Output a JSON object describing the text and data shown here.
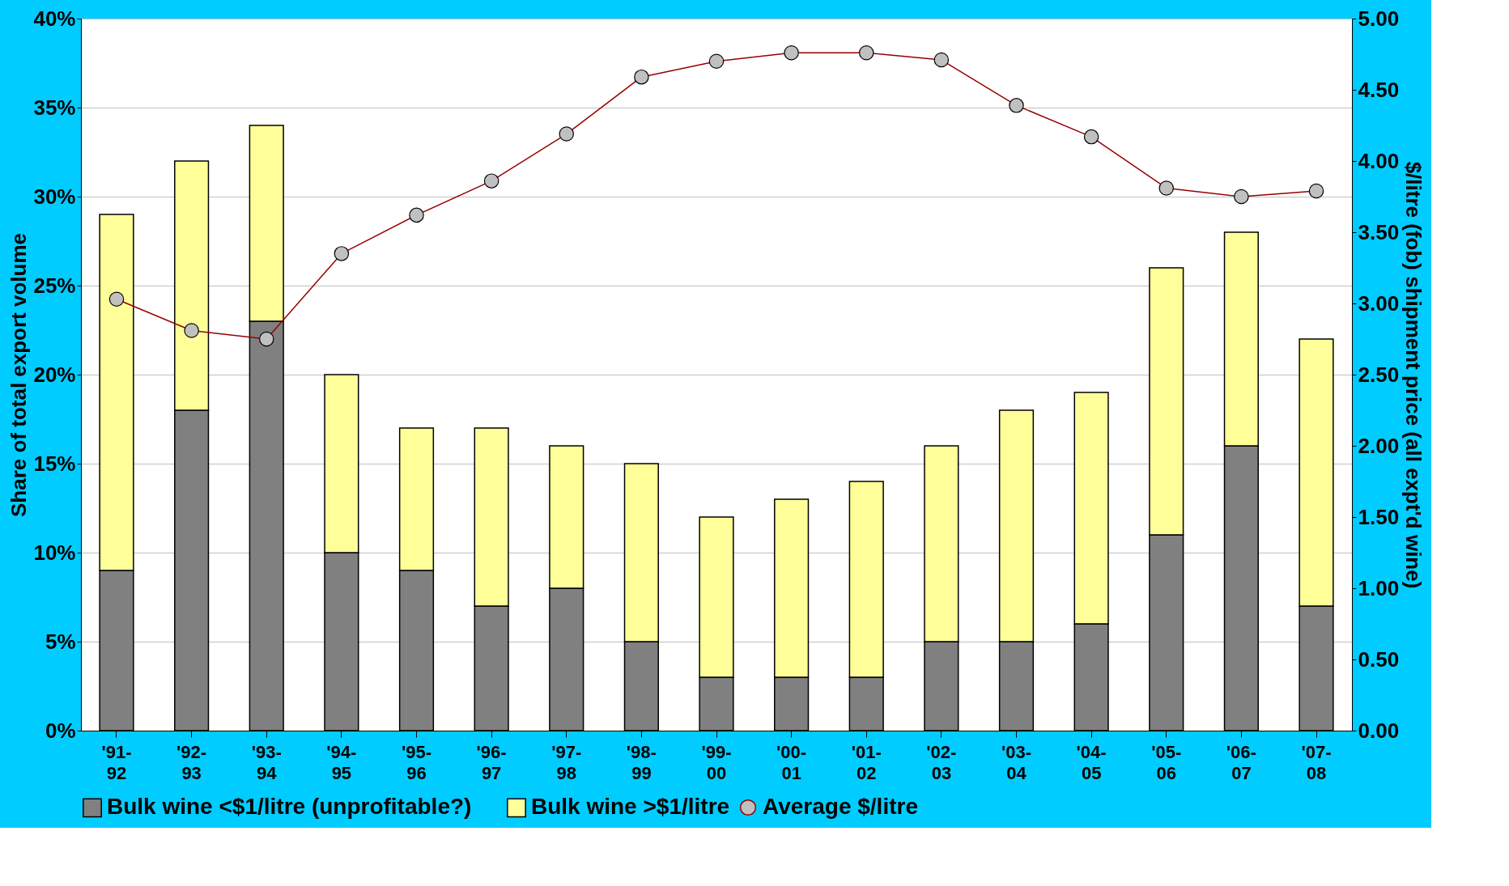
{
  "chart_data": {
    "type": "bar",
    "stacked": true,
    "ylabel": "Share of total export volume",
    "y2label": "$/litre (fob) shipment price (all expt'd wine)",
    "categories": [
      "'91-92",
      "'92-93",
      "'93-94",
      "'94-95",
      "'95-96",
      "'96-97",
      "'97-98",
      "'98-99",
      "'99-00",
      "'00-01",
      "'01-02",
      "'02-03",
      "'03-04",
      "'04-05",
      "'05-06",
      "'06-07",
      "'07-08"
    ],
    "series": [
      {
        "name": "Bulk wine <$1/litre (unprofitable?)",
        "color": "#808080",
        "values": [
          9,
          18,
          23,
          10,
          9,
          7,
          8,
          5,
          3,
          3,
          3,
          5,
          5,
          6,
          11,
          16,
          7
        ]
      },
      {
        "name": "Bulk wine >$1/litre",
        "color": "#ffff99",
        "values": [
          20,
          14,
          11,
          10,
          8,
          10,
          8,
          10,
          9,
          10,
          11,
          11,
          13,
          13,
          15,
          12,
          15
        ]
      },
      {
        "name": "Average $/litre",
        "type": "line",
        "axis": "y2",
        "color": "#990000",
        "marker": "circle",
        "values": [
          3.03,
          2.81,
          2.75,
          3.35,
          3.62,
          3.86,
          4.19,
          4.59,
          4.7,
          4.76,
          4.76,
          4.71,
          4.39,
          4.17,
          3.81,
          3.75,
          3.79
        ]
      }
    ],
    "ylim": [
      0,
      40
    ],
    "yticks": [
      {
        "value": 0,
        "label": "0%"
      },
      {
        "value": 5,
        "label": "5%"
      },
      {
        "value": 10,
        "label": "10%"
      },
      {
        "value": 15,
        "label": "15%"
      },
      {
        "value": 20,
        "label": "20%"
      },
      {
        "value": 25,
        "label": "25%"
      },
      {
        "value": 30,
        "label": "30%"
      },
      {
        "value": 35,
        "label": "35%"
      },
      {
        "value": 40,
        "label": "40%"
      }
    ],
    "y2lim": [
      0,
      5
    ],
    "y2ticks": [
      {
        "value": 0,
        "label": "0.00"
      },
      {
        "value": 0.5,
        "label": "0.50"
      },
      {
        "value": 1,
        "label": "1.00"
      },
      {
        "value": 1.5,
        "label": "1.50"
      },
      {
        "value": 2,
        "label": "2.00"
      },
      {
        "value": 2.5,
        "label": "2.50"
      },
      {
        "value": 3,
        "label": "3.00"
      },
      {
        "value": 3.5,
        "label": "3.50"
      },
      {
        "value": 4,
        "label": "4.00"
      },
      {
        "value": 4.5,
        "label": "4.50"
      },
      {
        "value": 5,
        "label": "5.00"
      }
    ],
    "grid": "y",
    "legend": "bottom"
  }
}
